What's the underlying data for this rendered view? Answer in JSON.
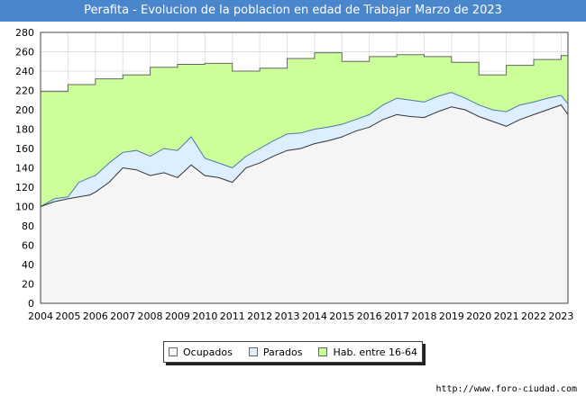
{
  "chart_data": {
    "type": "area",
    "title": "Perafita - Evolucion de la poblacion en edad de Trabajar Marzo de 2023",
    "xlabel": "",
    "ylabel": "",
    "ylim": [
      0,
      280
    ],
    "xlim": [
      2004,
      2023.25
    ],
    "yticks": [
      0,
      20,
      40,
      60,
      80,
      100,
      120,
      140,
      160,
      180,
      200,
      220,
      240,
      260,
      280
    ],
    "xticks": [
      "2004",
      "2005",
      "2006",
      "2007",
      "2008",
      "2009",
      "2010",
      "2011",
      "2012",
      "2013",
      "2014",
      "2015",
      "2016",
      "2017",
      "2018",
      "2019",
      "2020",
      "2021",
      "2022",
      "2023"
    ],
    "grid": true,
    "legend_position": "bottom",
    "series": [
      {
        "name": "Hab. entre 16-64",
        "color": "#ccff99",
        "stroke": "#666666",
        "step": true,
        "x": [
          2004,
          2005,
          2006,
          2007,
          2008,
          2009,
          2010,
          2011,
          2012,
          2013,
          2014,
          2015,
          2016,
          2017,
          2018,
          2019,
          2020,
          2021,
          2022,
          2023
        ],
        "values": [
          219,
          226,
          232,
          236,
          244,
          247,
          248,
          240,
          243,
          253,
          259,
          250,
          255,
          257,
          255,
          249,
          236,
          246,
          252,
          256
        ]
      },
      {
        "name": "Parados",
        "color": "#ddeeff",
        "stroke": "#4a7ab0",
        "x": [
          2004,
          2004.5,
          2005,
          2005.4,
          2005.8,
          2006,
          2006.5,
          2007,
          2007.5,
          2008,
          2008.5,
          2009,
          2009.5,
          2010,
          2010.5,
          2011,
          2011.5,
          2012,
          2012.5,
          2013,
          2013.5,
          2014,
          2014.5,
          2015,
          2015.5,
          2016,
          2016.5,
          2017,
          2017.5,
          2018,
          2018.5,
          2019,
          2019.5,
          2020,
          2020.5,
          2021,
          2021.5,
          2022,
          2022.5,
          2023,
          2023.25
        ],
        "values": [
          100,
          108,
          110,
          125,
          130,
          132,
          145,
          156,
          158,
          152,
          160,
          158,
          172,
          150,
          145,
          140,
          152,
          160,
          168,
          175,
          176,
          180,
          182,
          185,
          190,
          195,
          205,
          212,
          210,
          208,
          214,
          218,
          212,
          205,
          200,
          198,
          205,
          208,
          212,
          215,
          206
        ]
      },
      {
        "name": "Ocupados",
        "color": "#f5f5f5",
        "stroke": "#333333",
        "x": [
          2004,
          2004.5,
          2005,
          2005.4,
          2005.8,
          2006,
          2006.5,
          2007,
          2007.5,
          2008,
          2008.5,
          2009,
          2009.5,
          2010,
          2010.5,
          2011,
          2011.5,
          2012,
          2012.5,
          2013,
          2013.5,
          2014,
          2014.5,
          2015,
          2015.5,
          2016,
          2016.5,
          2017,
          2017.5,
          2018,
          2018.5,
          2019,
          2019.5,
          2020,
          2020.5,
          2021,
          2021.5,
          2022,
          2022.5,
          2023,
          2023.25
        ],
        "values": [
          100,
          105,
          108,
          110,
          112,
          115,
          125,
          140,
          138,
          132,
          135,
          130,
          143,
          132,
          130,
          125,
          140,
          145,
          152,
          158,
          160,
          165,
          168,
          172,
          178,
          182,
          190,
          195,
          193,
          192,
          198,
          203,
          200,
          193,
          188,
          183,
          190,
          195,
          200,
          205,
          195
        ]
      }
    ]
  },
  "legend": {
    "items": [
      {
        "label": "Ocupados",
        "color": "#f5f5f5"
      },
      {
        "label": "Parados",
        "color": "#ddeeff"
      },
      {
        "label": "Hab. entre 16-64",
        "color": "#ccff99"
      }
    ]
  },
  "watermark": "FORO-CIUDAD.COM",
  "source_url": "http://www.foro-ciudad.com"
}
